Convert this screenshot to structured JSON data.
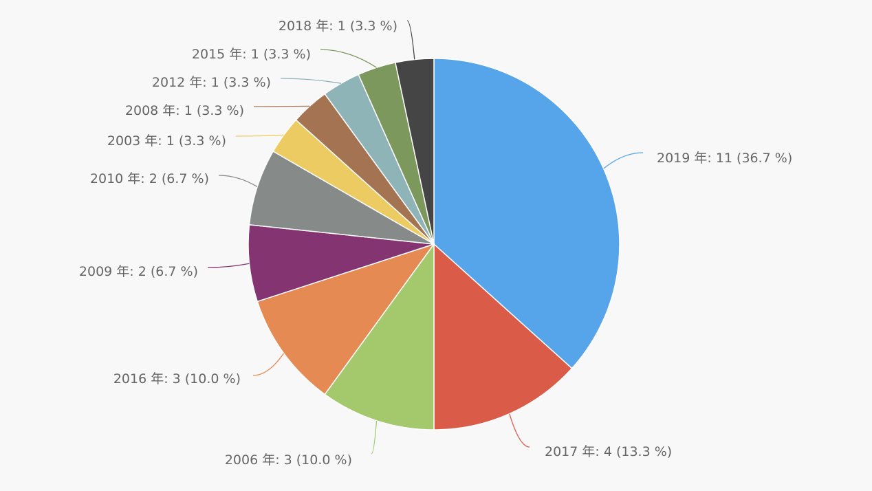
{
  "chart_data": {
    "type": "pie",
    "title": "",
    "series": [
      {
        "name": "",
        "slices": [
          {
            "label": "2019 年: 11 (36.7 %)",
            "category": "2019 年",
            "value": 11,
            "percent": 36.7,
            "color": "#56a5ea"
          },
          {
            "label": "2017 年: 4 (13.3 %)",
            "category": "2017 年",
            "value": 4,
            "percent": 13.3,
            "color": "#d95b48"
          },
          {
            "label": "2006 年: 3 (10.0 %)",
            "category": "2006 年",
            "value": 3,
            "percent": 10.0,
            "color": "#a4c96d"
          },
          {
            "label": "2016 年: 3 (10.0 %)",
            "category": "2016 年",
            "value": 3,
            "percent": 10.0,
            "color": "#e68a54"
          },
          {
            "label": "2009 年: 2 (6.7 %)",
            "category": "2009 年",
            "value": 2,
            "percent": 6.7,
            "color": "#833471"
          },
          {
            "label": "2010 年: 2 (6.7 %)",
            "category": "2010 年",
            "value": 2,
            "percent": 6.7,
            "color": "#868b8a"
          },
          {
            "label": "2003 年: 1 (3.3 %)",
            "category": "2003 年",
            "value": 1,
            "percent": 3.3,
            "color": "#eccb63"
          },
          {
            "label": "2008 年: 1 (3.3 %)",
            "category": "2008 年",
            "value": 1,
            "percent": 3.3,
            "color": "#a47452"
          },
          {
            "label": "2012 年: 1 (3.3 %)",
            "category": "2012 年",
            "value": 1,
            "percent": 3.3,
            "color": "#8fb4b8"
          },
          {
            "label": "2015 年: 1 (3.3 %)",
            "category": "2015 年",
            "value": 1,
            "percent": 3.3,
            "color": "#7d985d"
          },
          {
            "label": "2018 年: 1 (3.3 %)",
            "category": "2018 年",
            "value": 1,
            "percent": 3.3,
            "color": "#454545"
          }
        ]
      }
    ],
    "start_angle": "12 o'clock",
    "direction": "clockwise",
    "legend": "none",
    "data_labels": "outside with connector lines",
    "background_color": "#f8f8f8"
  }
}
